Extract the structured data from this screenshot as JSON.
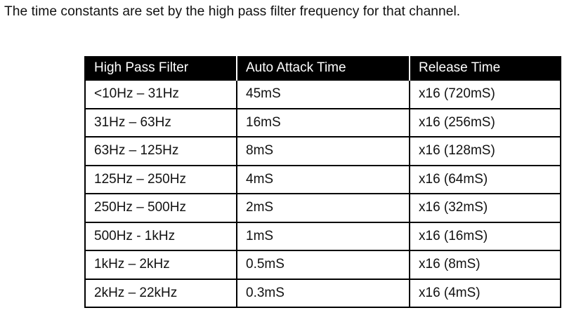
{
  "intro_text": "The time constants are set by the high pass filter frequency for that channel.",
  "table": {
    "headers": [
      "High Pass Filter",
      "Auto Attack Time",
      "Release Time"
    ],
    "rows": [
      [
        "<10Hz – 31Hz",
        "45mS",
        "x16 (720mS)"
      ],
      [
        "31Hz – 63Hz",
        "16mS",
        "x16 (256mS)"
      ],
      [
        "63Hz – 125Hz",
        "8mS",
        "x16 (128mS)"
      ],
      [
        "125Hz – 250Hz",
        "4mS",
        "x16 (64mS)"
      ],
      [
        "250Hz – 500Hz",
        "2mS",
        "x16 (32mS)"
      ],
      [
        "500Hz - 1kHz",
        "1mS",
        "x16 (16mS)"
      ],
      [
        "1kHz – 2kHz",
        "0.5mS",
        "x16 (8mS)"
      ],
      [
        "2kHz – 22kHz",
        "0.3mS",
        "x16 (4mS)"
      ]
    ]
  }
}
